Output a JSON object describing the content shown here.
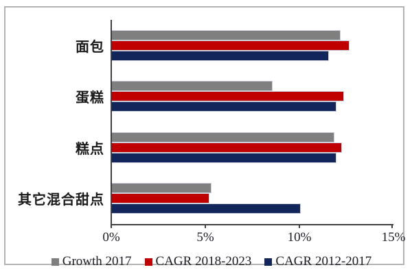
{
  "chart_data": {
    "type": "bar",
    "orientation": "horizontal",
    "title": "",
    "xlabel": "",
    "ylabel": "",
    "categories": [
      "面包",
      "蛋糕",
      "糕点",
      "其它混合甜点"
    ],
    "series": [
      {
        "name": "Growth 2017",
        "color": "#7F7F7F",
        "values": [
          12.2,
          8.6,
          11.9,
          5.3
        ]
      },
      {
        "name": "CAGR 2018-2023",
        "color": "#C00000",
        "values": [
          12.7,
          12.4,
          12.3,
          5.2
        ]
      },
      {
        "name": "CAGR 2012-2017",
        "color": "#12265B",
        "values": [
          11.6,
          12.0,
          12.0,
          10.1
        ]
      }
    ],
    "xlim": [
      0,
      15
    ],
    "x_ticks": [
      {
        "value": 0,
        "label": "0%"
      },
      {
        "value": 5,
        "label": "5%"
      },
      {
        "value": 10,
        "label": "10%"
      },
      {
        "value": 15,
        "label": "15%"
      }
    ],
    "grid": false,
    "legend_position": "bottom",
    "value_unit": "percent"
  }
}
